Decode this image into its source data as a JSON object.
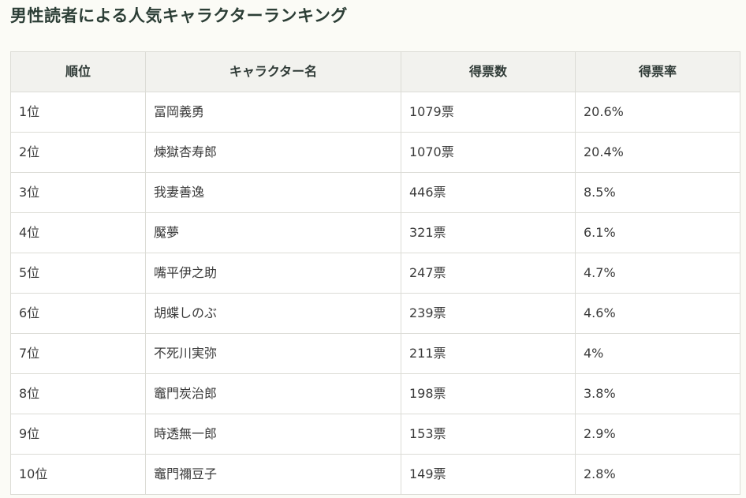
{
  "title": "男性読者による人気キャラクターランキング",
  "table": {
    "headers": [
      "順位",
      "キャラクター名",
      "得票数",
      "得票率"
    ],
    "rows": [
      {
        "rank": "1位",
        "name": "冨岡義勇",
        "votes": "1079票",
        "rate": "20.6%"
      },
      {
        "rank": "2位",
        "name": "煉獄杏寿郎",
        "votes": "1070票",
        "rate": "20.4%"
      },
      {
        "rank": "3位",
        "name": "我妻善逸",
        "votes": "446票",
        "rate": "8.5%"
      },
      {
        "rank": "4位",
        "name": "魘夢",
        "votes": "321票",
        "rate": "6.1%"
      },
      {
        "rank": "5位",
        "name": "嘴平伊之助",
        "votes": "247票",
        "rate": "4.7%"
      },
      {
        "rank": "6位",
        "name": "胡蝶しのぶ",
        "votes": "239票",
        "rate": "4.6%"
      },
      {
        "rank": "7位",
        "name": "不死川実弥",
        "votes": "211票",
        "rate": "4%"
      },
      {
        "rank": "8位",
        "name": "竈門炭治郎",
        "votes": "198票",
        "rate": "3.8%"
      },
      {
        "rank": "9位",
        "name": "時透無一郎",
        "votes": "153票",
        "rate": "2.9%"
      },
      {
        "rank": "10位",
        "name": "竈門禰豆子",
        "votes": "149票",
        "rate": "2.8%"
      }
    ]
  }
}
